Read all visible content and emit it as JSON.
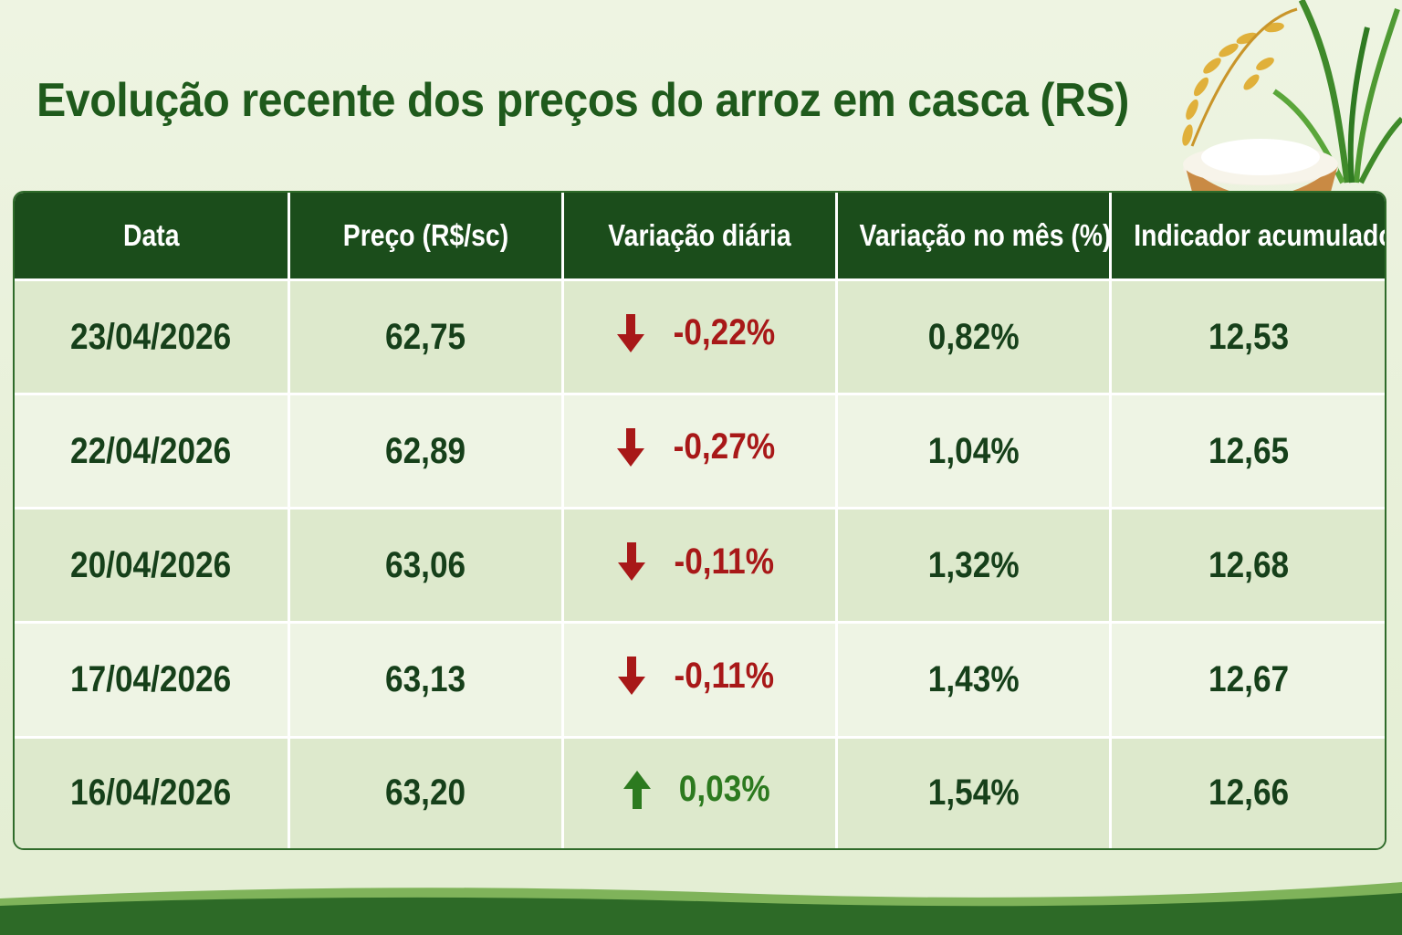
{
  "title": "Evolução recente dos preços do arroz em casca (RS)",
  "colors": {
    "header_bg": "#1b4d1b",
    "negative": "#a81818",
    "positive": "#2c7a1f",
    "title": "#1f5a1c"
  },
  "chart_data": {
    "type": "table",
    "title": "Evolução recente dos preços do arroz em casca (RS)",
    "columns": [
      "Data",
      "Preço (R$/sc)",
      "Variação diária",
      "Variação no mês (%)",
      "Indicador acumulado"
    ],
    "rows": [
      {
        "date": "23/04/2026",
        "price": "62,75",
        "daily": "-0,22%",
        "direction": "down",
        "month": "0,82%",
        "accum": "12,53"
      },
      {
        "date": "22/04/2026",
        "price": "62,89",
        "daily": "-0,27%",
        "direction": "down",
        "month": "1,04%",
        "accum": "12,65"
      },
      {
        "date": "20/04/2026",
        "price": "63,06",
        "daily": "-0,11%",
        "direction": "down",
        "month": "1,32%",
        "accum": "12,68"
      },
      {
        "date": "17/04/2026",
        "price": "63,13",
        "daily": "-0,11%",
        "direction": "down",
        "month": "1,43%",
        "accum": "12,67"
      },
      {
        "date": "16/04/2026",
        "price": "63,20",
        "daily": "0,03%",
        "direction": "up",
        "month": "1,54%",
        "accum": "12,66"
      }
    ]
  },
  "icons": {
    "down": "arrow-down-icon",
    "up": "arrow-up-icon",
    "decor": "rice-plant-bowl-icon"
  }
}
